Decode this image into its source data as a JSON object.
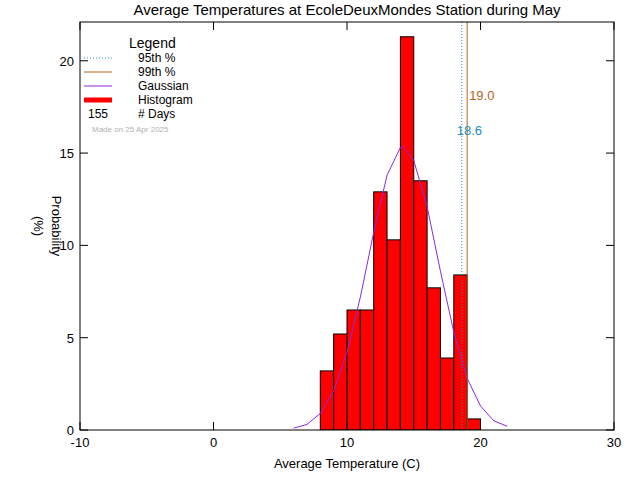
{
  "chart_data": {
    "type": "histogram",
    "title": "Average Temperatures at EcoleDeuxMondes Station during May",
    "x_label": "Average Temperature (C)",
    "y_label": "Probability (%)",
    "bins": [
      8,
      9,
      10,
      11,
      12,
      13,
      14,
      15,
      16,
      17,
      18,
      19,
      20
    ],
    "series": [
      {
        "name": "Histogram",
        "type": "bar",
        "color": "#ff0000",
        "values": [
          3.2,
          5.2,
          6.5,
          6.5,
          12.9,
          10.3,
          21.3,
          13.5,
          7.7,
          3.9,
          8.4,
          0.6
        ]
      },
      {
        "name": "Gaussian",
        "type": "line",
        "color": "#8a2be2",
        "x": [
          6,
          7,
          8,
          9,
          10,
          11,
          12,
          13,
          14,
          14.2,
          15,
          16,
          17,
          18,
          19,
          20,
          21,
          22
        ],
        "values": [
          0.1,
          0.3,
          0.9,
          2.1,
          4.2,
          7.2,
          10.7,
          13.8,
          15.3,
          15.35,
          14.6,
          12.1,
          8.6,
          5.3,
          2.8,
          1.3,
          0.5,
          0.2
        ]
      }
    ],
    "percentiles": [
      {
        "name": "95th %",
        "value": 18.6,
        "label": "18.6",
        "color": "#1a8fc0",
        "line_style": "dotted"
      },
      {
        "name": "99th %",
        "value": 19.0,
        "label": "19.0",
        "color": "#b4651e",
        "line_style": "solid"
      }
    ],
    "legend": "top-left",
    "legend_title": "Legend",
    "days_count": 155,
    "days_label": "# Days",
    "note": "Made on 25 Apr 2025",
    "xlim": [
      -10,
      30
    ],
    "ylim": [
      0,
      22.1
    ],
    "xticks": [
      -10,
      0,
      10,
      20,
      30
    ],
    "yticks": [
      0,
      5,
      10,
      15,
      20
    ]
  }
}
